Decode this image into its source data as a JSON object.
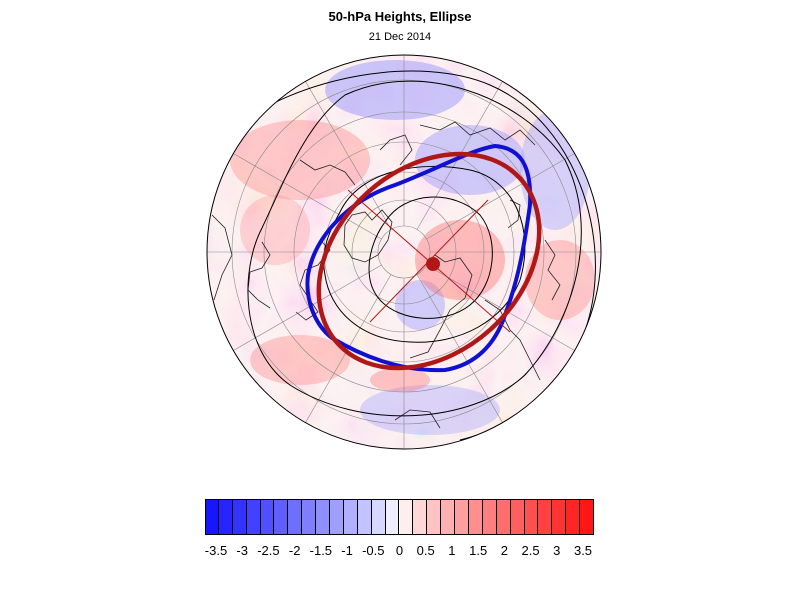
{
  "title": "50-hPa Heights, Ellipse",
  "date": "21 Dec 2014",
  "legend": {
    "labels": [
      "-3.5",
      "-3",
      "-2.5",
      "-2",
      "-1.5",
      "-1",
      "-0.5",
      "0",
      "0.5",
      "1",
      "1.5",
      "2",
      "2.5",
      "3",
      "3.5"
    ],
    "levels": [
      -3.5,
      -3.25,
      -3,
      -2.75,
      -2.5,
      -2.25,
      -2,
      -1.75,
      -1.5,
      -1.25,
      -1,
      -0.75,
      -0.5,
      -0.25,
      0,
      0.25,
      0.5,
      0.75,
      1,
      1.25,
      1.5,
      1.75,
      2,
      2.25,
      2.5,
      2.75,
      3,
      3.25,
      3.5
    ],
    "negative_color": "#1010ff",
    "positive_color": "#ff1010",
    "neutral_color": "#ffffff"
  },
  "map": {
    "projection": "north-polar-stereographic",
    "overlays": {
      "height_contour_color": "#000000",
      "observed_vortex_edge_color": "#1010d0",
      "fitted_ellipse_color": "#b01818",
      "ellipse_center_color": "#b01818"
    }
  }
}
